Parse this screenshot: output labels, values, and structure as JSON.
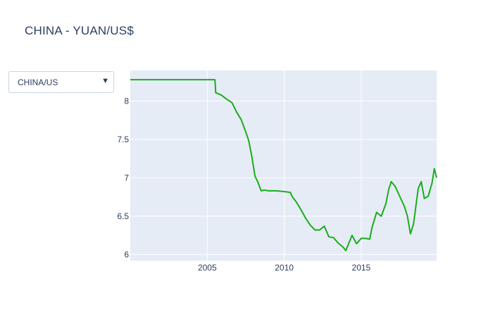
{
  "title": "CHINA - YUAN/US$",
  "dropdown": {
    "selected": "CHINA/US",
    "arrow_icon": "triangle-down-icon"
  },
  "colors": {
    "line": "#1aad1a",
    "plot_bg": "#e5ecf6",
    "grid": "#ffffff",
    "text": "#2a3f5f"
  },
  "chart_data": {
    "type": "line",
    "title": "CHINA - YUAN/US$",
    "xlabel": "",
    "ylabel": "",
    "xlim": [
      2000.0,
      2019.9
    ],
    "ylim": [
      5.92,
      8.4
    ],
    "x_ticks": [
      2005,
      2010,
      2015
    ],
    "y_ticks": [
      6,
      6.5,
      7,
      7.5,
      8
    ],
    "grid": true,
    "series": [
      {
        "x": [
          2000.0,
          2002.0,
          2004.0,
          2005.5,
          2005.55,
          2005.9,
          2006.3,
          2006.6,
          2006.9,
          2007.2,
          2007.5,
          2007.7,
          2007.9,
          2008.1,
          2008.3,
          2008.5,
          2008.7,
          2009.0,
          2009.5,
          2010.0,
          2010.4,
          2010.5,
          2010.8,
          2011.1,
          2011.4,
          2011.7,
          2012.0,
          2012.3,
          2012.6,
          2012.9,
          2013.2,
          2013.5,
          2013.8,
          2014.0,
          2014.2,
          2014.4,
          2014.7,
          2015.0,
          2015.3,
          2015.55,
          2015.7,
          2016.0,
          2016.3,
          2016.6,
          2016.8,
          2016.95,
          2017.2,
          2017.5,
          2017.8,
          2018.0,
          2018.2,
          2018.4,
          2018.7,
          2018.9,
          2019.1,
          2019.35,
          2019.6,
          2019.75,
          2019.9
        ],
        "y": [
          8.28,
          8.28,
          8.28,
          8.28,
          8.11,
          8.08,
          8.02,
          7.98,
          7.86,
          7.76,
          7.6,
          7.48,
          7.27,
          7.02,
          6.94,
          6.83,
          6.84,
          6.83,
          6.83,
          6.82,
          6.81,
          6.76,
          6.68,
          6.58,
          6.47,
          6.38,
          6.32,
          6.32,
          6.37,
          6.23,
          6.22,
          6.15,
          6.1,
          6.05,
          6.15,
          6.25,
          6.14,
          6.21,
          6.21,
          6.2,
          6.35,
          6.55,
          6.5,
          6.66,
          6.86,
          6.95,
          6.89,
          6.76,
          6.63,
          6.5,
          6.27,
          6.4,
          6.86,
          6.95,
          6.73,
          6.76,
          6.93,
          7.12,
          7.0
        ]
      }
    ]
  }
}
